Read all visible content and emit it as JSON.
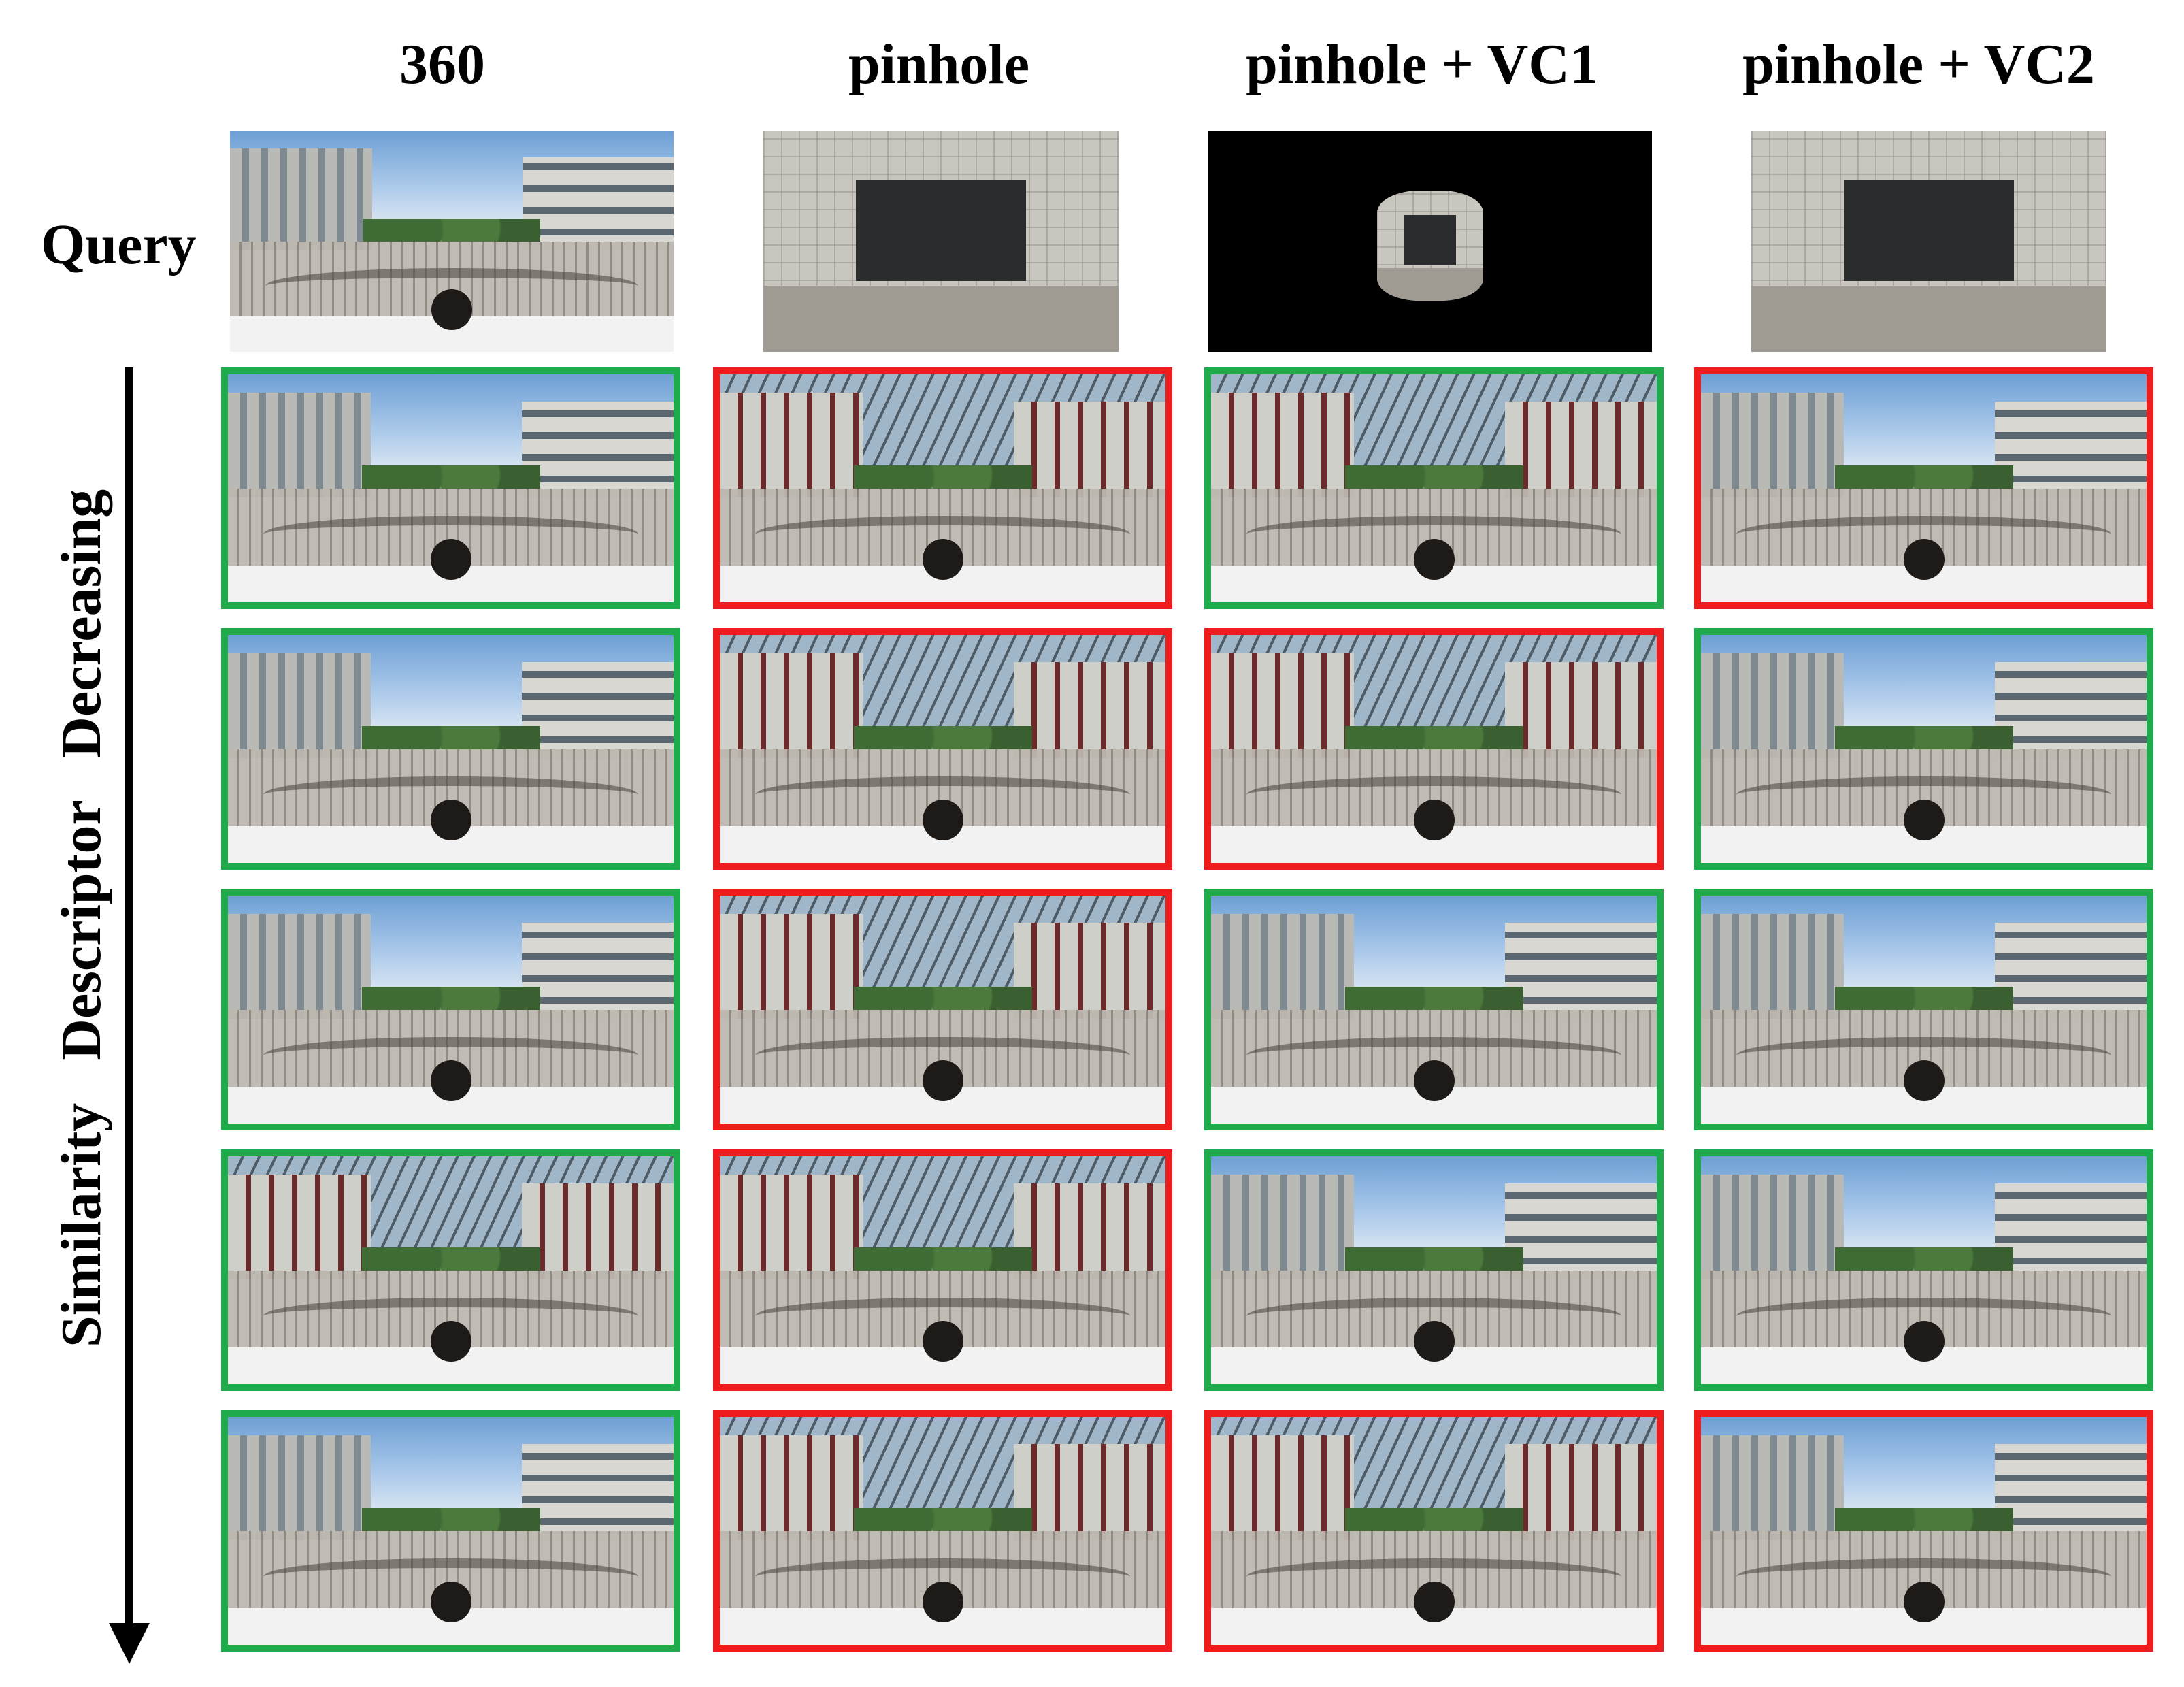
{
  "columns": [
    {
      "label": "360",
      "query_view": "panorama"
    },
    {
      "label": "pinhole",
      "query_view": "pinhole"
    },
    {
      "label": "pinhole + VC1",
      "query_view": "pinhole-crop-on-black"
    },
    {
      "label": "pinhole + VC2",
      "query_view": "pinhole"
    }
  ],
  "row_label": "Query",
  "axis_label": "Similarity   Descriptor   Decreasing",
  "colors": {
    "correct": "#1faa4b",
    "incorrect": "#ee1c1c"
  },
  "results": [
    [
      "correct",
      "correct",
      "correct",
      "correct",
      "correct"
    ],
    [
      "incorrect",
      "incorrect",
      "incorrect",
      "incorrect",
      "incorrect"
    ],
    [
      "correct",
      "incorrect",
      "correct",
      "correct",
      "incorrect"
    ],
    [
      "incorrect",
      "correct",
      "correct",
      "correct",
      "incorrect"
    ]
  ]
}
